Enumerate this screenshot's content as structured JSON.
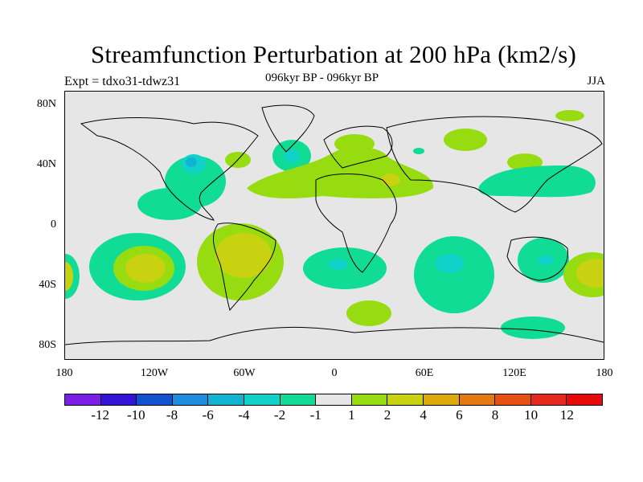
{
  "title": "Streamfunction Perturbation at 200 hPa (km2/s)",
  "subtitle": "096kyr BP - 096kyr BP",
  "experiment": "Expt = tdxo31-tdwz31",
  "season": "JJA",
  "lat_labels": [
    "80N",
    "40N",
    "0",
    "40S",
    "80S"
  ],
  "lon_labels": [
    "180",
    "120W",
    "60W",
    "0",
    "60E",
    "120E",
    "180"
  ],
  "colorbar": {
    "colors": [
      "#7b1ee6",
      "#3114d6",
      "#1450d2",
      "#1e8cdc",
      "#10b4d2",
      "#10d2c8",
      "#10dc96",
      "#e6e6e6",
      "#96dc10",
      "#c8d210",
      "#dcaa0a",
      "#e67814",
      "#e65014",
      "#e6281e",
      "#e60a0a"
    ],
    "labels": [
      "-12",
      "-10",
      "-8",
      "-6",
      "-4",
      "-2",
      "-1",
      "1",
      "2",
      "4",
      "6",
      "8",
      "10",
      "12"
    ]
  }
}
